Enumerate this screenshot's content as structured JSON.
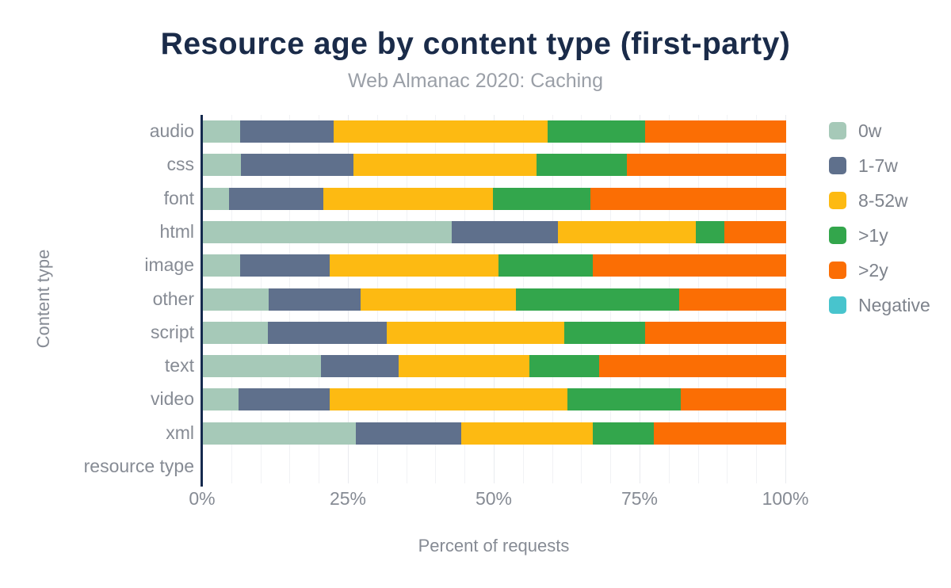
{
  "header": {
    "title": "Resource age by content type (first-party)",
    "subtitle": "Web Almanac 2020: Caching"
  },
  "chart_data": {
    "type": "bar",
    "orientation": "horizontal",
    "stacked": true,
    "title": "Resource age by content type (first-party)",
    "subtitle": "Web Almanac 2020: Caching",
    "xlabel": "Percent of requests",
    "ylabel": "Content type",
    "xlim": [
      0,
      100
    ],
    "xtick_values": [
      0,
      25,
      50,
      75,
      100
    ],
    "xtick_labels": [
      "0%",
      "25%",
      "50%",
      "75%",
      "100%"
    ],
    "minor_grid_step": 5,
    "grid": true,
    "legend_position": "right",
    "categories": [
      "audio",
      "css",
      "font",
      "html",
      "image",
      "other",
      "script",
      "text",
      "video",
      "xml",
      "resource type"
    ],
    "series": [
      {
        "name": "0w",
        "color": "#a6c9b8",
        "values": [
          6.4,
          6.5,
          4.5,
          42.7,
          6.4,
          11.3,
          11.1,
          20.3,
          6.1,
          26.2,
          0
        ]
      },
      {
        "name": "1-7w",
        "color": "#5f708c",
        "values": [
          16.0,
          19.3,
          16.2,
          18.2,
          15.4,
          15.8,
          20.4,
          13.3,
          15.6,
          18.1,
          0
        ]
      },
      {
        "name": "8-52w",
        "color": "#fdba12",
        "values": [
          36.7,
          31.4,
          29.1,
          23.6,
          28.9,
          26.6,
          30.5,
          22.4,
          40.8,
          22.6,
          0
        ]
      },
      {
        "name": ">1y",
        "color": "#33a64c",
        "values": [
          16.7,
          15.5,
          16.6,
          4.9,
          16.2,
          27.9,
          13.8,
          12.0,
          19.4,
          10.4,
          0
        ]
      },
      {
        "name": ">2y",
        "color": "#fb6e04",
        "values": [
          24.2,
          27.3,
          33.6,
          10.6,
          33.1,
          18.4,
          24.2,
          32.0,
          18.1,
          22.7,
          0
        ]
      },
      {
        "name": "Negative",
        "color": "#48c4cd",
        "values": [
          0,
          0,
          0,
          0,
          0,
          0,
          0,
          0,
          0,
          0,
          0
        ]
      }
    ],
    "colors": {
      "title": "#1a2b49",
      "subtitle": "#9a9fa7",
      "axis_line": "#152a4e",
      "labels": "#868b94",
      "grid": "#f1f2f5"
    }
  }
}
